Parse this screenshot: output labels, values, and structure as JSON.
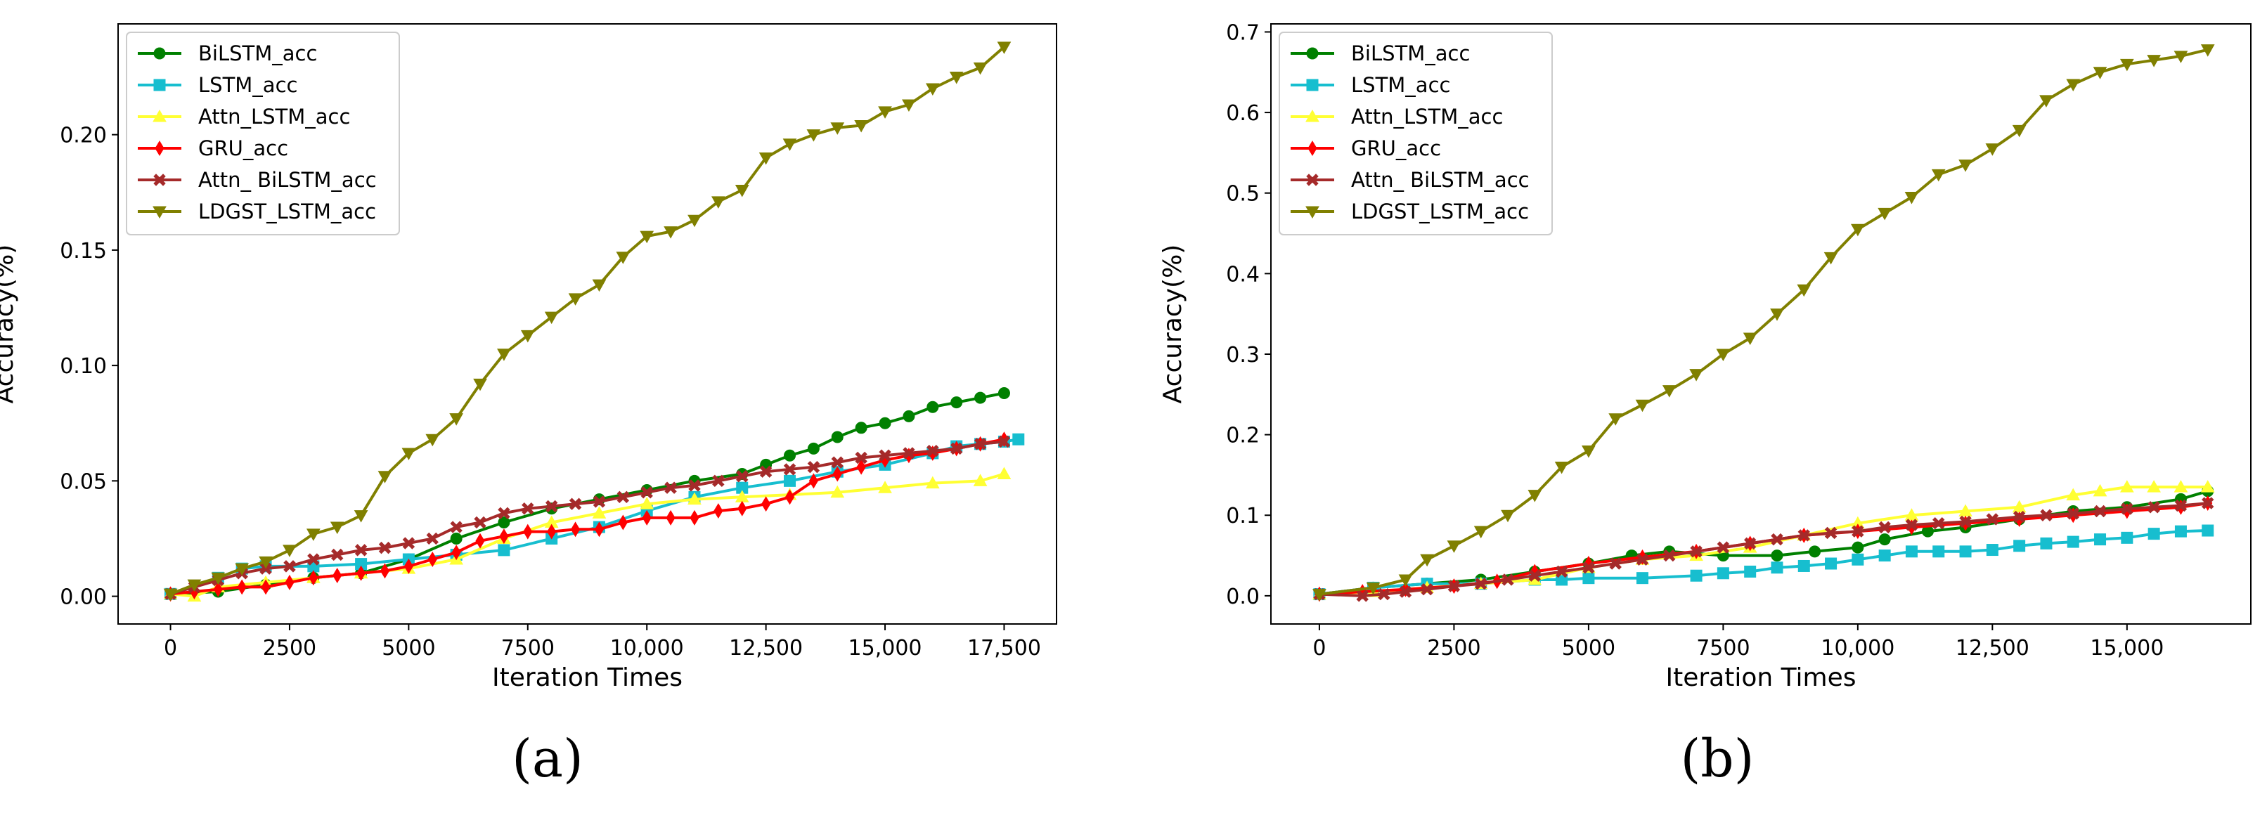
{
  "chart_data": [
    {
      "type": "line",
      "panel_label": "(a)",
      "xlabel": "Iteration Times",
      "ylabel": "Accuracy(%)",
      "xlim": [
        -1100,
        18600
      ],
      "ylim": [
        -0.012,
        0.248
      ],
      "xticks": [
        0,
        2500,
        5000,
        7500,
        10000,
        12500,
        15000,
        17500
      ],
      "xtick_labels": [
        "0",
        "2500",
        "5000",
        "7500",
        "10,000",
        "12,500",
        "15,000",
        "17,500"
      ],
      "yticks": [
        0.0,
        0.05,
        0.1,
        0.15,
        0.2
      ],
      "ytick_labels": [
        "0.00",
        "0.05",
        "0.10",
        "0.15",
        "0.20"
      ],
      "legend_position": "upper-left",
      "series": [
        {
          "name": "BiLSTM_acc",
          "color": "#008000",
          "marker": "circle",
          "x": [
            0,
            1000,
            2000,
            3000,
            4000,
            5000,
            6000,
            7000,
            8000,
            9000,
            10000,
            11000,
            12000,
            12500,
            13000,
            13500,
            14000,
            14500,
            15000,
            15500,
            16000,
            16500,
            17000,
            17500
          ],
          "y": [
            0.001,
            0.002,
            0.005,
            0.008,
            0.01,
            0.016,
            0.025,
            0.032,
            0.038,
            0.042,
            0.046,
            0.05,
            0.053,
            0.057,
            0.061,
            0.064,
            0.069,
            0.073,
            0.075,
            0.078,
            0.082,
            0.084,
            0.086,
            0.088
          ]
        },
        {
          "name": "LSTM_acc",
          "color": "#17becf",
          "marker": "square",
          "x": [
            0,
            1000,
            1500,
            2000,
            3000,
            4000,
            5000,
            6000,
            7000,
            8000,
            9000,
            10000,
            11000,
            12000,
            13000,
            14000,
            15000,
            16000,
            16500,
            17000,
            17500,
            17800
          ],
          "y": [
            0.001,
            0.008,
            0.012,
            0.013,
            0.013,
            0.014,
            0.016,
            0.018,
            0.02,
            0.025,
            0.03,
            0.037,
            0.043,
            0.047,
            0.05,
            0.054,
            0.057,
            0.062,
            0.065,
            0.066,
            0.067,
            0.068
          ]
        },
        {
          "name": "Attn_LSTM_acc",
          "color": "#ffff33",
          "marker": "triangle-up",
          "x": [
            0,
            500,
            1000,
            2000,
            3000,
            4000,
            5000,
            6000,
            7000,
            8000,
            9000,
            10000,
            11000,
            12000,
            13000,
            14000,
            15000,
            16000,
            17000,
            17500
          ],
          "y": [
            0.001,
            0.0,
            0.004,
            0.006,
            0.008,
            0.01,
            0.012,
            0.016,
            0.025,
            0.032,
            0.036,
            0.04,
            0.042,
            0.043,
            0.044,
            0.045,
            0.047,
            0.049,
            0.05,
            0.053
          ]
        },
        {
          "name": "GRU_acc",
          "color": "#ff0000",
          "marker": "diamond",
          "x": [
            0,
            500,
            1000,
            1500,
            2000,
            2500,
            3000,
            3500,
            4000,
            4500,
            5000,
            5500,
            6000,
            6500,
            7000,
            7500,
            8000,
            8500,
            9000,
            9500,
            10000,
            10500,
            11000,
            11500,
            12000,
            12500,
            13000,
            13500,
            14000,
            14500,
            15000,
            15500,
            16000,
            16500,
            17000,
            17500
          ],
          "y": [
            0.001,
            0.002,
            0.003,
            0.004,
            0.004,
            0.006,
            0.008,
            0.009,
            0.01,
            0.011,
            0.013,
            0.016,
            0.019,
            0.024,
            0.026,
            0.028,
            0.028,
            0.029,
            0.029,
            0.032,
            0.034,
            0.034,
            0.034,
            0.037,
            0.038,
            0.04,
            0.043,
            0.05,
            0.053,
            0.056,
            0.059,
            0.061,
            0.062,
            0.064,
            0.066,
            0.068
          ]
        },
        {
          "name": "Attn_ BiLSTM_acc",
          "color": "#a52a2a",
          "marker": "x-filled",
          "x": [
            0,
            500,
            1000,
            1500,
            2000,
            2500,
            3000,
            3500,
            4000,
            4500,
            5000,
            5500,
            6000,
            6500,
            7000,
            7500,
            8000,
            8500,
            9000,
            9500,
            10000,
            10500,
            11000,
            11500,
            12000,
            12500,
            13000,
            13500,
            14000,
            14500,
            15000,
            15500,
            16000,
            16500,
            17000,
            17500
          ],
          "y": [
            0.001,
            0.004,
            0.007,
            0.01,
            0.012,
            0.013,
            0.016,
            0.018,
            0.02,
            0.021,
            0.023,
            0.025,
            0.03,
            0.032,
            0.036,
            0.038,
            0.039,
            0.04,
            0.041,
            0.043,
            0.045,
            0.047,
            0.048,
            0.05,
            0.052,
            0.054,
            0.055,
            0.056,
            0.058,
            0.06,
            0.061,
            0.062,
            0.063,
            0.064,
            0.066,
            0.067
          ]
        },
        {
          "name": "LDGST_LSTM_acc",
          "color": "#808000",
          "marker": "triangle-down",
          "x": [
            0,
            500,
            1000,
            1500,
            2000,
            2500,
            3000,
            3500,
            4000,
            4500,
            5000,
            5500,
            6000,
            6500,
            7000,
            7500,
            8000,
            8500,
            9000,
            9500,
            10000,
            10500,
            11000,
            11500,
            12000,
            12500,
            13000,
            13500,
            14000,
            14500,
            15000,
            15500,
            16000,
            16500,
            17000,
            17500
          ],
          "y": [
            0.001,
            0.005,
            0.008,
            0.012,
            0.015,
            0.02,
            0.027,
            0.03,
            0.035,
            0.052,
            0.062,
            0.068,
            0.077,
            0.092,
            0.105,
            0.113,
            0.121,
            0.129,
            0.135,
            0.147,
            0.156,
            0.158,
            0.163,
            0.171,
            0.176,
            0.19,
            0.196,
            0.2,
            0.203,
            0.204,
            0.21,
            0.213,
            0.22,
            0.225,
            0.229,
            0.238
          ]
        }
      ]
    },
    {
      "type": "line",
      "panel_label": "(b)",
      "xlabel": "Iteration Times",
      "ylabel": "Accuracy(%)",
      "xlim": [
        -900,
        17300
      ],
      "ylim": [
        -0.035,
        0.71
      ],
      "xticks": [
        0,
        2500,
        5000,
        7500,
        10000,
        12500,
        15000
      ],
      "xtick_labels": [
        "0",
        "2500",
        "5000",
        "7500",
        "10,000",
        "12,500",
        "15,000"
      ],
      "yticks": [
        0.0,
        0.1,
        0.2,
        0.3,
        0.4,
        0.5,
        0.6,
        0.7
      ],
      "ytick_labels": [
        "0.0",
        "0.1",
        "0.2",
        "0.3",
        "0.4",
        "0.5",
        "0.6",
        "0.7"
      ],
      "legend_position": "upper-left",
      "series": [
        {
          "name": "BiLSTM_acc",
          "color": "#008000",
          "marker": "circle",
          "x": [
            0,
            1000,
            2000,
            3000,
            4000,
            5000,
            5800,
            6500,
            7500,
            8500,
            9200,
            10000,
            10500,
            11300,
            12000,
            13000,
            14000,
            15000,
            16000,
            16500
          ],
          "y": [
            0.002,
            0.01,
            0.015,
            0.02,
            0.03,
            0.04,
            0.05,
            0.055,
            0.05,
            0.05,
            0.055,
            0.06,
            0.07,
            0.08,
            0.085,
            0.095,
            0.105,
            0.11,
            0.12,
            0.13
          ]
        },
        {
          "name": "LSTM_acc",
          "color": "#17becf",
          "marker": "square",
          "x": [
            0,
            1000,
            2000,
            3000,
            4000,
            4500,
            5000,
            6000,
            7000,
            7500,
            8000,
            8500,
            9000,
            9500,
            10000,
            10500,
            11000,
            11500,
            12000,
            12500,
            13000,
            13500,
            14000,
            14500,
            15000,
            15500,
            16000,
            16500
          ],
          "y": [
            0.002,
            0.01,
            0.015,
            0.015,
            0.02,
            0.02,
            0.022,
            0.022,
            0.025,
            0.028,
            0.03,
            0.035,
            0.037,
            0.04,
            0.045,
            0.05,
            0.055,
            0.055,
            0.055,
            0.057,
            0.062,
            0.065,
            0.067,
            0.07,
            0.072,
            0.077,
            0.08,
            0.081
          ]
        },
        {
          "name": "Attn_LSTM_acc",
          "color": "#ffff33",
          "marker": "triangle-up",
          "x": [
            0,
            1000,
            2000,
            3000,
            4000,
            5000,
            6000,
            7000,
            8000,
            9000,
            10000,
            11000,
            12000,
            13000,
            14000,
            14500,
            15000,
            15500,
            16000,
            16500
          ],
          "y": [
            0.002,
            0.005,
            0.01,
            0.015,
            0.02,
            0.035,
            0.045,
            0.05,
            0.06,
            0.075,
            0.09,
            0.1,
            0.105,
            0.11,
            0.125,
            0.13,
            0.135,
            0.135,
            0.135,
            0.135
          ]
        },
        {
          "name": "GRU_acc",
          "color": "#ff0000",
          "marker": "diamond",
          "x": [
            0,
            800,
            1600,
            2500,
            3300,
            4000,
            5000,
            6000,
            7000,
            8000,
            9000,
            10000,
            11000,
            12000,
            13000,
            14000,
            15000,
            16000,
            16500
          ],
          "y": [
            0.002,
            0.005,
            0.008,
            0.012,
            0.018,
            0.03,
            0.04,
            0.048,
            0.055,
            0.065,
            0.075,
            0.08,
            0.085,
            0.09,
            0.095,
            0.1,
            0.105,
            0.11,
            0.115
          ]
        },
        {
          "name": "Attn_ BiLSTM_acc",
          "color": "#a52a2a",
          "marker": "x-filled",
          "x": [
            0,
            800,
            1200,
            1600,
            2000,
            2500,
            3000,
            3500,
            4000,
            4500,
            5000,
            5500,
            6000,
            6500,
            7000,
            7500,
            8000,
            8500,
            9000,
            9500,
            10000,
            10500,
            11000,
            11500,
            12000,
            12500,
            13000,
            13500,
            14000,
            14500,
            15000,
            15500,
            16000,
            16500
          ],
          "y": [
            0.002,
            0.0,
            0.002,
            0.005,
            0.008,
            0.012,
            0.015,
            0.02,
            0.025,
            0.03,
            0.035,
            0.04,
            0.045,
            0.05,
            0.055,
            0.06,
            0.065,
            0.07,
            0.075,
            0.078,
            0.08,
            0.085,
            0.088,
            0.09,
            0.092,
            0.095,
            0.098,
            0.1,
            0.102,
            0.105,
            0.108,
            0.11,
            0.112,
            0.115
          ]
        },
        {
          "name": "LDGST_LSTM_acc",
          "color": "#808000",
          "marker": "triangle-down",
          "x": [
            0,
            1000,
            1600,
            2000,
            2500,
            3000,
            3500,
            4000,
            4500,
            5000,
            5500,
            6000,
            6500,
            7000,
            7500,
            8000,
            8500,
            9000,
            9500,
            10000,
            10500,
            11000,
            11500,
            12000,
            12500,
            13000,
            13500,
            14000,
            14500,
            15000,
            15500,
            16000,
            16500
          ],
          "y": [
            0.002,
            0.01,
            0.02,
            0.045,
            0.062,
            0.08,
            0.1,
            0.125,
            0.16,
            0.18,
            0.22,
            0.237,
            0.255,
            0.275,
            0.3,
            0.32,
            0.35,
            0.38,
            0.42,
            0.455,
            0.475,
            0.495,
            0.523,
            0.535,
            0.555,
            0.578,
            0.615,
            0.635,
            0.65,
            0.66,
            0.665,
            0.67,
            0.678
          ]
        }
      ]
    }
  ]
}
